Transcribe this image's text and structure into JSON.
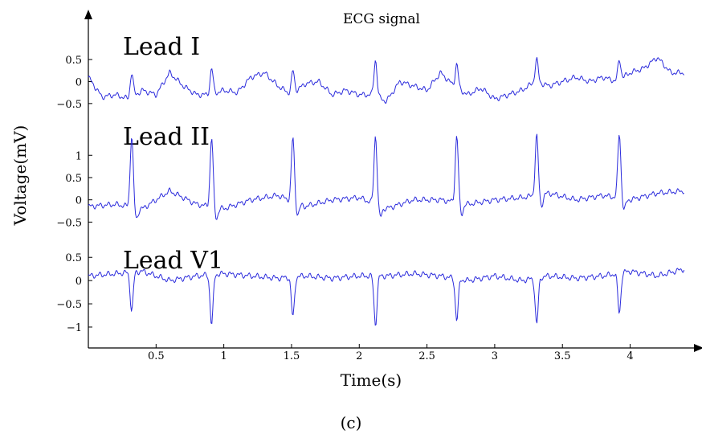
{
  "chart_data": {
    "type": "line",
    "title": "ECG signal",
    "xlabel": "Time(s)",
    "ylabel": "Voltage(mV)",
    "caption": "(c)",
    "line_color": "#2b2bdc",
    "grid": false,
    "xlim": [
      0,
      4.4
    ],
    "x_ticks": [
      0.5,
      1,
      1.5,
      2,
      2.5,
      3,
      3.5,
      4
    ],
    "x_tick_labels": [
      "0.5",
      "1",
      "1.5",
      "2",
      "2.5",
      "3",
      "3.5",
      "4"
    ],
    "beat_times": [
      0.32,
      0.91,
      1.51,
      2.12,
      2.72,
      3.31,
      3.92
    ],
    "series": [
      {
        "name": "Lead I",
        "ylim": [
          -0.85,
          1.05
        ],
        "y_ticks": [
          -0.5,
          0,
          0.5
        ],
        "y_tick_labels": [
          "−0.5",
          "0",
          "0.5"
        ],
        "x": [
          0.0,
          0.1,
          0.2,
          0.3,
          0.4,
          0.5,
          0.6,
          0.7,
          0.8,
          0.9,
          1.0,
          1.1,
          1.2,
          1.3,
          1.4,
          1.5,
          1.6,
          1.7,
          1.8,
          1.9,
          2.0,
          2.1,
          2.2,
          2.3,
          2.4,
          2.5,
          2.6,
          2.7,
          2.8,
          2.9,
          3.0,
          3.1,
          3.2,
          3.3,
          3.4,
          3.5,
          3.6,
          3.7,
          3.8,
          3.9,
          4.0,
          4.1,
          4.2,
          4.3,
          4.4
        ],
        "y": [
          0.1,
          -0.35,
          -0.3,
          -0.4,
          -0.2,
          -0.3,
          0.2,
          -0.1,
          -0.3,
          -0.3,
          -0.2,
          -0.25,
          0.1,
          0.2,
          -0.1,
          -0.3,
          -0.05,
          0.0,
          -0.3,
          -0.2,
          -0.3,
          -0.3,
          -0.45,
          0.0,
          -0.1,
          -0.2,
          0.2,
          -0.1,
          -0.3,
          -0.15,
          -0.4,
          -0.3,
          -0.2,
          0.0,
          -0.1,
          0.0,
          0.1,
          0.0,
          0.1,
          0.0,
          0.2,
          0.3,
          0.55,
          0.2,
          0.2
        ],
        "peaks": [
          0.2,
          0.3,
          0.25,
          0.5,
          0.4,
          0.5,
          0.5
        ]
      },
      {
        "name": "Lead II",
        "ylim": [
          -0.8,
          1.6
        ],
        "y_ticks": [
          -0.5,
          0,
          0.5,
          1
        ],
        "y_tick_labels": [
          "−0.5",
          "0",
          "0.5",
          "1"
        ],
        "x": [
          0.0,
          0.2,
          0.4,
          0.6,
          0.8,
          1.0,
          1.2,
          1.4,
          1.6,
          1.8,
          2.0,
          2.2,
          2.4,
          2.6,
          2.8,
          3.0,
          3.2,
          3.4,
          3.6,
          3.8,
          4.0,
          4.2,
          4.4
        ],
        "y": [
          -0.15,
          -0.1,
          -0.2,
          0.2,
          -0.1,
          -0.2,
          0.0,
          0.1,
          -0.15,
          0.0,
          0.05,
          -0.2,
          0.0,
          0.0,
          -0.1,
          0.0,
          0.05,
          0.15,
          0.0,
          0.1,
          0.0,
          0.15,
          0.2
        ],
        "peaks": [
          1.45,
          1.4,
          1.4,
          1.45,
          1.45,
          1.45,
          1.5
        ]
      },
      {
        "name": "Lead V1",
        "ylim": [
          -1.45,
          0.85
        ],
        "y_ticks": [
          -1,
          -0.5,
          0,
          0.5
        ],
        "y_tick_labels": [
          "−1",
          "−0.5",
          "0",
          "0.5"
        ],
        "x": [
          0.0,
          0.2,
          0.4,
          0.6,
          0.8,
          1.0,
          1.2,
          1.4,
          1.6,
          1.8,
          2.0,
          2.2,
          2.4,
          2.6,
          2.8,
          3.0,
          3.2,
          3.4,
          3.6,
          3.8,
          4.0,
          4.2,
          4.4
        ],
        "y": [
          0.1,
          0.15,
          0.2,
          0.0,
          0.1,
          0.15,
          0.1,
          0.05,
          0.1,
          0.05,
          0.1,
          0.1,
          0.15,
          0.1,
          0.0,
          0.1,
          0.0,
          0.1,
          0.05,
          0.1,
          0.2,
          0.1,
          0.25
        ],
        "peaks": [
          -0.65,
          -0.95,
          -0.8,
          -0.95,
          -0.85,
          -0.95,
          -0.7
        ]
      }
    ]
  }
}
